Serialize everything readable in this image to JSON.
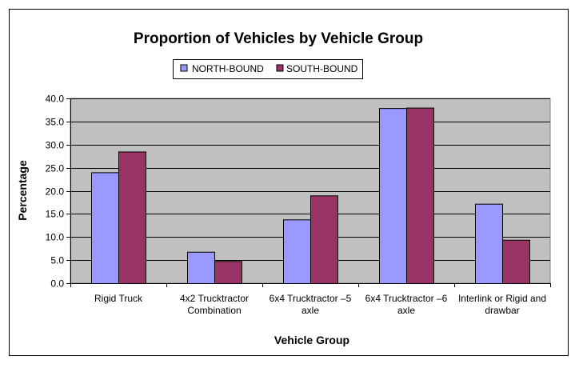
{
  "chart_data": {
    "type": "bar",
    "title": "Proportion of Vehicles by Vehicle Group",
    "xlabel": "Vehicle Group",
    "ylabel": "Percentage",
    "ylim": [
      0,
      40
    ],
    "yticks": [
      "0.0",
      "5.0",
      "10.0",
      "15.0",
      "20.0",
      "25.0",
      "30.0",
      "35.0",
      "40.0"
    ],
    "grid": true,
    "legend_position": "top",
    "categories": [
      [
        "Rigid Truck"
      ],
      [
        "4x2 Trucktractor",
        "Combination"
      ],
      [
        "6x4 Trucktractor –5",
        "axle"
      ],
      [
        "6x4 Trucktractor –6",
        "axle"
      ],
      [
        "Interlink or Rigid and",
        "drawbar"
      ]
    ],
    "series": [
      {
        "name": "NORTH-BOUND",
        "color": "#9999ff",
        "values": [
          24.0,
          6.8,
          13.8,
          37.9,
          17.2
        ]
      },
      {
        "name": "SOUTH-BOUND",
        "color": "#993366",
        "values": [
          28.5,
          4.8,
          19.0,
          38.0,
          9.4
        ]
      }
    ],
    "plot_background": "#c0c0c0"
  }
}
